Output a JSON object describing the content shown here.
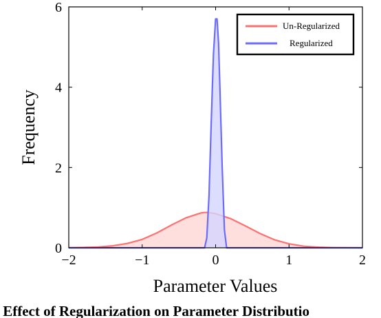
{
  "chart_data": {
    "type": "area",
    "title": "",
    "xlabel": "Parameter Values",
    "ylabel": "Frequency",
    "xlim": [
      -2,
      2
    ],
    "ylim": [
      0,
      6
    ],
    "x_ticks": [
      "−2",
      "−1",
      "0",
      "1",
      "2"
    ],
    "y_ticks": [
      "0",
      "2",
      "4",
      "6"
    ],
    "legend_position": "top-right",
    "series": [
      {
        "name": "Un-Regularized",
        "color": "#ff7070",
        "fill": "#ffd6d6",
        "x": [
          -2.0,
          -1.8,
          -1.6,
          -1.4,
          -1.2,
          -1.0,
          -0.8,
          -0.6,
          -0.4,
          -0.2,
          -0.15,
          -0.1,
          0.0,
          0.2,
          0.4,
          0.6,
          0.8,
          1.0,
          1.2,
          1.4,
          1.6,
          1.8,
          2.0
        ],
        "values": [
          0.003,
          0.008,
          0.02,
          0.05,
          0.11,
          0.21,
          0.37,
          0.57,
          0.75,
          0.87,
          0.88,
          0.88,
          0.85,
          0.73,
          0.55,
          0.36,
          0.2,
          0.1,
          0.04,
          0.015,
          0.005,
          0.001,
          0.0
        ]
      },
      {
        "name": "Regularized",
        "color": "#6b6bff",
        "fill": "#d4d4ff",
        "x": [
          -2.0,
          -0.15,
          -0.12,
          -0.09,
          -0.06,
          -0.03,
          0.0,
          0.02,
          0.04,
          0.06,
          0.09,
          0.12,
          0.15,
          2.0
        ],
        "values": [
          0.0,
          0.0,
          0.25,
          1.3,
          3.1,
          4.8,
          5.7,
          5.7,
          5.1,
          3.9,
          2.0,
          0.45,
          0.0,
          0.0
        ]
      }
    ]
  },
  "caption": ": Effect of Regularization on Parameter Distributio"
}
